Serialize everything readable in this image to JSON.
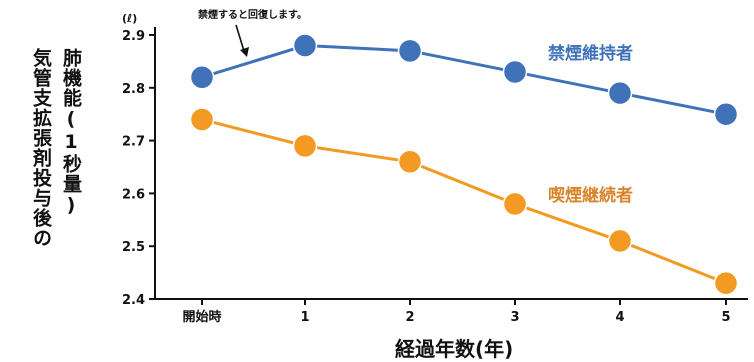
{
  "chart_data": {
    "type": "line",
    "ylabel_lines": [
      "肺機能(1秒量)",
      "気管支拡張剤投与後の"
    ],
    "xlabel": "経過年数(年)",
    "y_unit": "(ℓ)",
    "categories": [
      "開始時",
      "1",
      "2",
      "3",
      "4",
      "5"
    ],
    "ylim": [
      2.4,
      2.9
    ],
    "yticks": [
      "2.4",
      "2.5",
      "2.6",
      "2.7",
      "2.8",
      "2.9"
    ],
    "series": [
      {
        "name": "禁煙維持者",
        "values": [
          2.82,
          2.88,
          2.87,
          2.83,
          2.79,
          2.75
        ],
        "color": "#3f72b8"
      },
      {
        "name": "喫煙継続者",
        "values": [
          2.74,
          2.69,
          2.66,
          2.58,
          2.51,
          2.43
        ],
        "color": "#f29a22"
      }
    ],
    "annotation": "禁煙すると回復します。",
    "grid": false
  }
}
